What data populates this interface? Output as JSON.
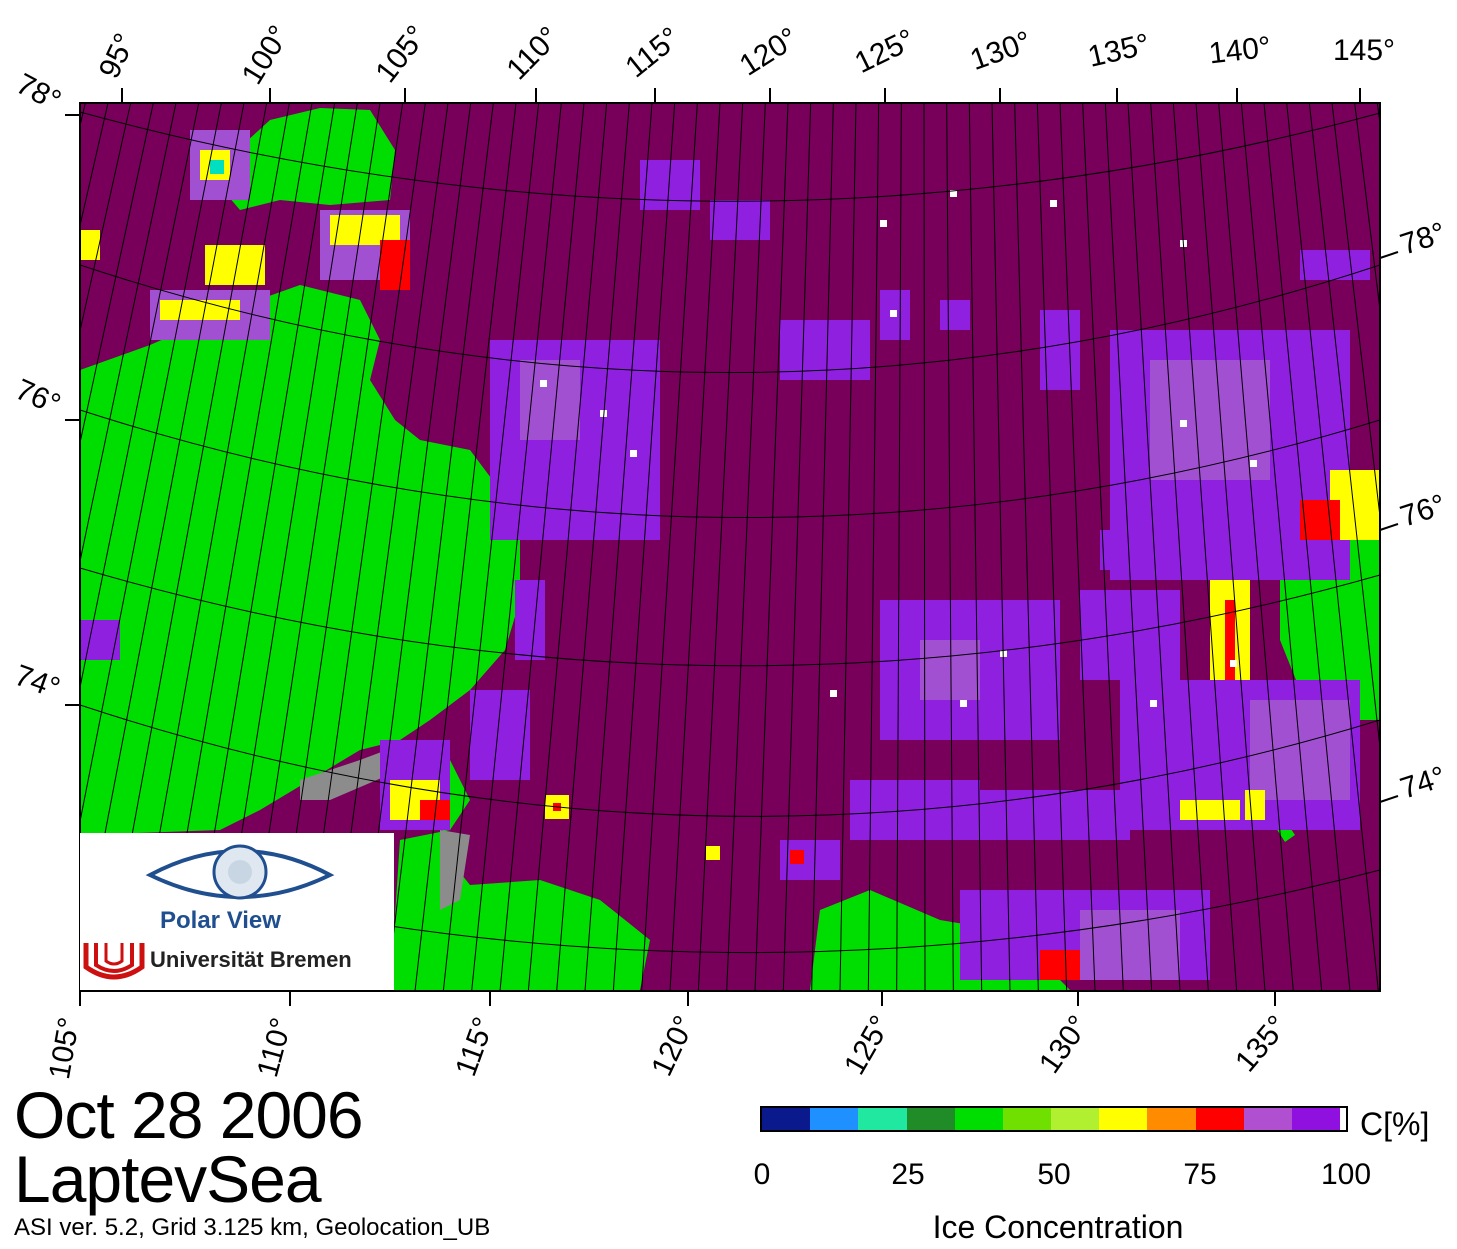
{
  "map": {
    "colors": {
      "ocean": "#78005a",
      "land": "#00dd00",
      "coast_mask": "#8c8c8c",
      "ice_low": "#a050d0",
      "ice_mid": "#9020e0",
      "ice_high": "#ffffff",
      "edge_red": "#ff0000",
      "edge_orange": "#ff8c00",
      "edge_yellow": "#ffff00",
      "edge_green": "#b0f030",
      "edge_cyan": "#00e0c0"
    },
    "top_lon_labels": [
      "95°",
      "100°",
      "105°",
      "110°",
      "115°",
      "120°",
      "125°",
      "130°",
      "135°",
      "140°",
      "145°"
    ],
    "bottom_lon_labels": [
      "105°",
      "110°",
      "115°",
      "120°",
      "125°",
      "130°",
      "135°"
    ],
    "left_lat_labels": [
      "78°",
      "76°",
      "74°"
    ],
    "right_lat_labels": [
      "78°",
      "76°",
      "74°"
    ]
  },
  "logo": {
    "title": "Polar View",
    "university": "Universität Bremen"
  },
  "footer": {
    "date": "Oct 28 2006",
    "region": "LaptevSea",
    "info": "ASI ver. 5.2,  Grid 3.125 km, Geolocation_UB"
  },
  "colorbar": {
    "unit": "C[%]",
    "title": "Ice Concentration",
    "tick_labels": [
      "0",
      "25",
      "50",
      "75",
      "100"
    ],
    "colors": [
      "#0a1a8c",
      "#1e90ff",
      "#20e8a0",
      "#208c28",
      "#00dd00",
      "#70e000",
      "#b0f030",
      "#ffff00",
      "#ff8c00",
      "#ff0000",
      "#b050d0",
      "#9010e0",
      "#ffffff"
    ]
  }
}
